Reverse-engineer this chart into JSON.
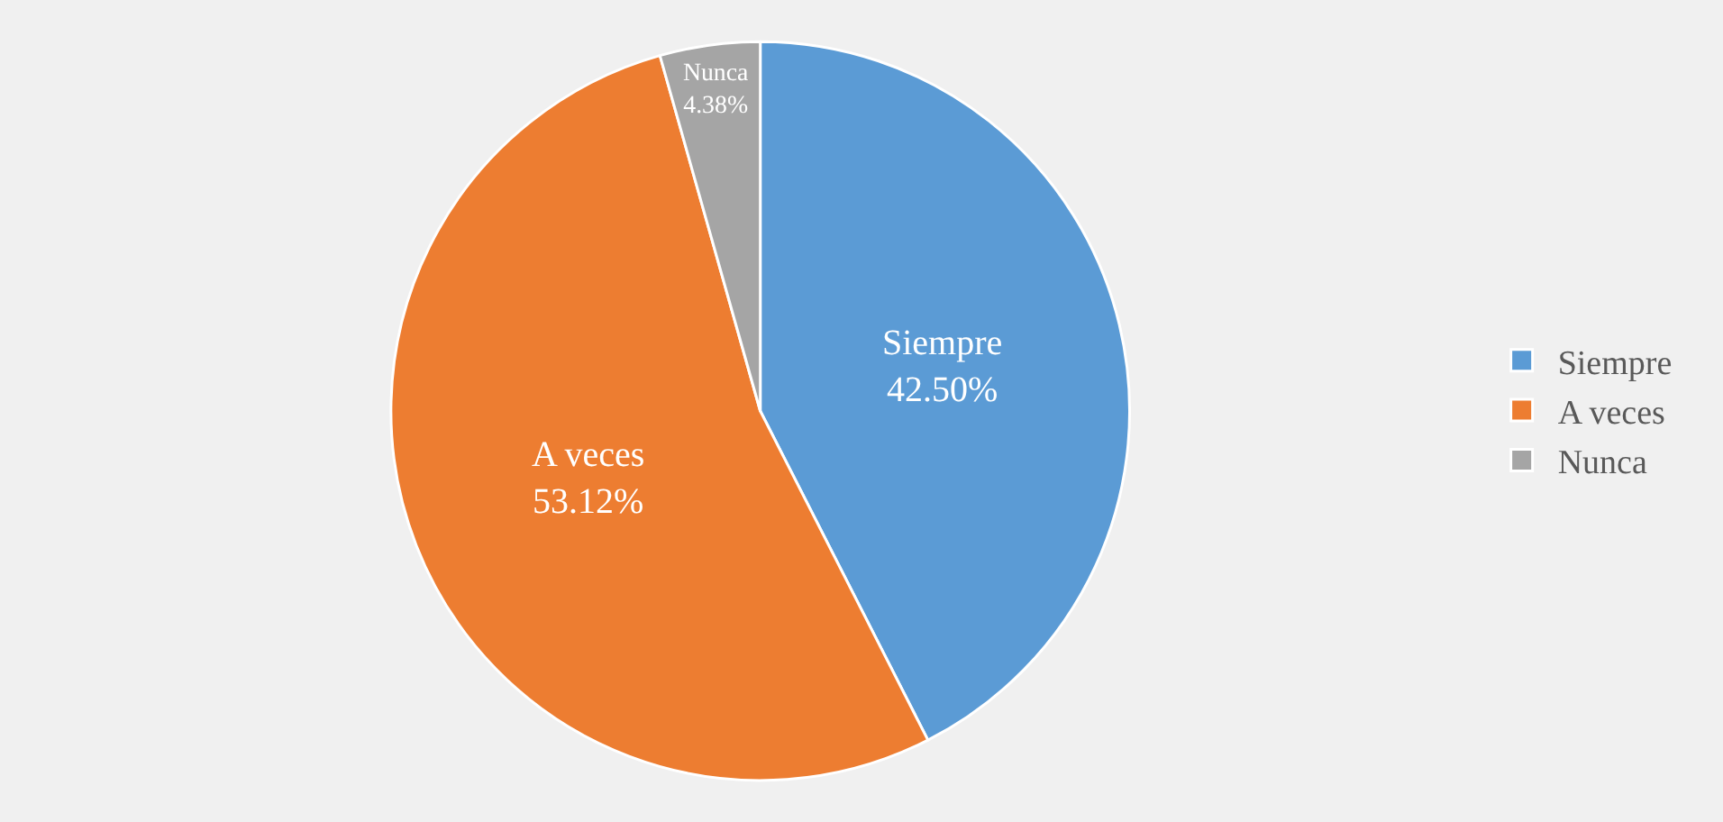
{
  "chart_data": {
    "type": "pie",
    "categories": [
      "Siempre",
      "A veces",
      "Nunca"
    ],
    "values": [
      42.5,
      53.12,
      4.38
    ],
    "colors": [
      "#5b9bd5",
      "#ed7d31",
      "#a5a5a5"
    ],
    "value_labels": [
      "42.50%",
      "53.12%",
      "4.38%"
    ],
    "legend": "right"
  }
}
